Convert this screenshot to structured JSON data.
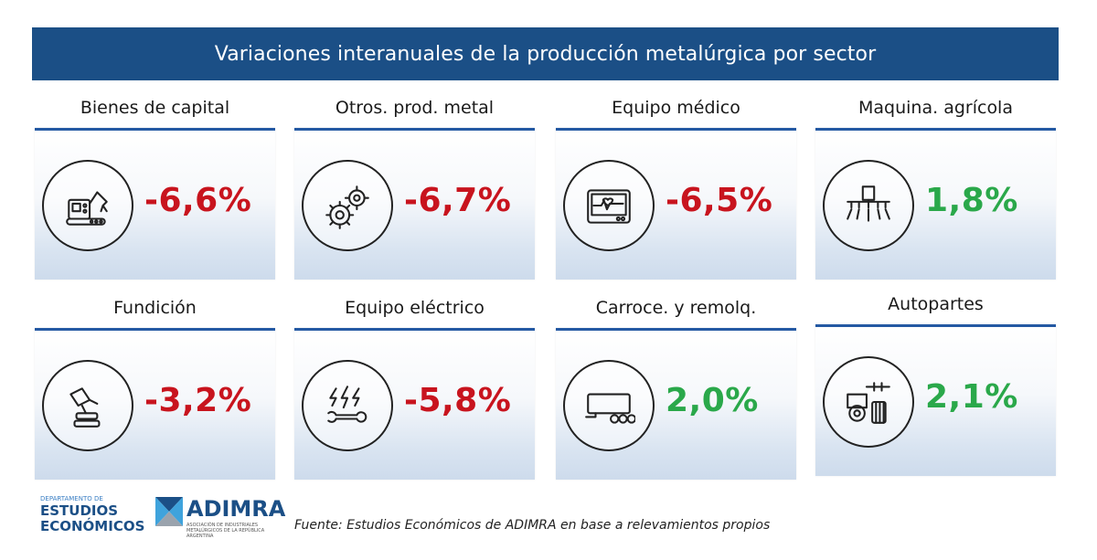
{
  "header": {
    "title": "Variaciones interanuales de la producción metalúrgica por sector"
  },
  "colors": {
    "header": "#1b4f86",
    "negative": "#c8141e",
    "positive": "#2aa84a",
    "card_border": "#2459a3"
  },
  "sectors": [
    {
      "name": "Bienes de capital",
      "value": "-6,6%",
      "trend": "negative",
      "icon": "robotic-arm-icon"
    },
    {
      "name": "Otros. prod. metal",
      "value": "-6,7%",
      "trend": "negative",
      "icon": "gears-icon"
    },
    {
      "name": "Equipo médico",
      "value": "-6,5%",
      "trend": "negative",
      "icon": "heart-monitor-icon"
    },
    {
      "name": "Maquina. agrícola",
      "value": "1,8%",
      "trend": "positive",
      "icon": "sprayer-icon"
    },
    {
      "name": "Fundición",
      "value": "-3,2%",
      "trend": "negative",
      "icon": "foundry-ladle-icon"
    },
    {
      "name": "Equipo eléctrico",
      "value": "-5,8%",
      "trend": "negative",
      "icon": "lightning-wrench-icon"
    },
    {
      "name": "Carroce. y remolq.",
      "value": "2,0%",
      "trend": "positive",
      "icon": "trailer-icon"
    },
    {
      "name": "Autopartes",
      "value": "2,1%",
      "trend": "positive",
      "icon": "engine-parts-icon"
    }
  ],
  "footer": {
    "dept_small": "DEPARTAMENTO DE",
    "dept_line1": "ESTUDIOS",
    "dept_line2": "ECONÓMICOS",
    "org_name": "ADIMRA",
    "org_sub": "ASOCIACIÓN DE INDUSTRIALES METALÚRGICOS DE LA REPÚBLICA ARGENTINA",
    "source": "Fuente: Estudios Económicos de ADIMRA en base a relevamientos propios"
  }
}
